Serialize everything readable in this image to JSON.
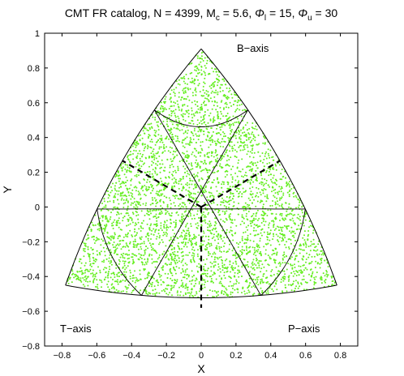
{
  "chart_data": {
    "type": "scatter",
    "title": {
      "prefix": "CMT FR catalog, N = 4399, M",
      "mc_sub": "c",
      "mc_val": " = 5.6, ",
      "phi": "Φ",
      "phil_sub": "l",
      "phil_val": " = 15, ",
      "phiu_sub": "u",
      "phiu_val": " = 30"
    },
    "xlabel": "X",
    "ylabel": "Y",
    "xlim": [
      -0.9,
      0.9
    ],
    "ylim": [
      -0.8,
      1.0
    ],
    "xticks": [
      -0.8,
      -0.6,
      -0.4,
      -0.2,
      0,
      0.2,
      0.4,
      0.6,
      0.8
    ],
    "xtick_labels": [
      "−0.8",
      "−0.6",
      "−0.4",
      "−0.2",
      "0",
      "0.2",
      "0.4",
      "0.6",
      "0.8"
    ],
    "yticks": [
      -0.8,
      -0.6,
      -0.4,
      -0.2,
      0,
      0.2,
      0.4,
      0.6,
      0.8,
      1
    ],
    "ytick_labels": [
      "−0.8",
      "−0.6",
      "−0.4",
      "−0.2",
      "0",
      "0.2",
      "0.4",
      "0.6",
      "0.8",
      "1"
    ],
    "corner_labels": {
      "b_axis": "B−axis",
      "t_axis": "T−axis",
      "p_axis": "P−axis"
    },
    "triangle_vertices": {
      "b": [
        0,
        0.91
      ],
      "t": [
        -0.78,
        -0.45
      ],
      "p": [
        0.78,
        -0.45
      ]
    },
    "point_count": 4399,
    "point_color": "#66ee22",
    "grid": "off",
    "legend": "none"
  }
}
